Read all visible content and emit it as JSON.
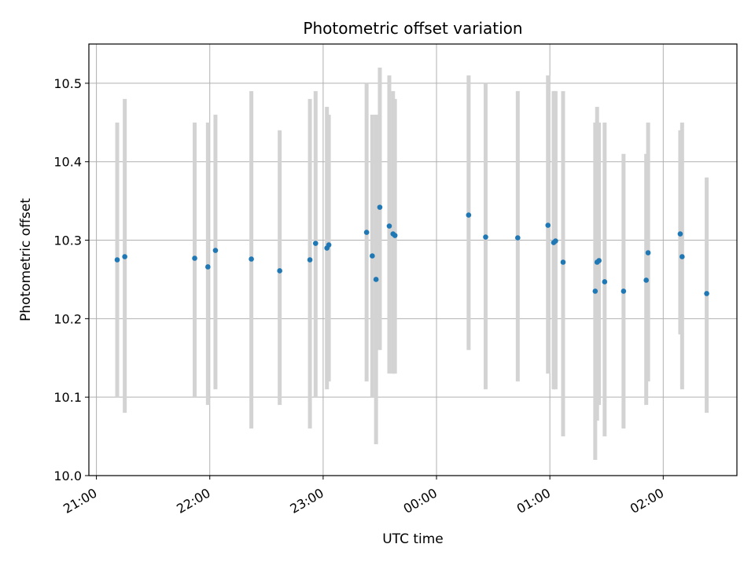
{
  "chart_data": {
    "type": "scatter",
    "title": "Photometric offset variation",
    "xlabel": "UTC time",
    "ylabel": "Photometric offset",
    "grid": true,
    "x_unit": "UTC time (next day beyond 24:00 shown as 00:00, 01:00, 02:00)",
    "xlim": [
      "20:56",
      "02:39"
    ],
    "ylim": [
      10.0,
      10.55
    ],
    "x_ticks": [
      "21:00",
      "22:00",
      "23:00",
      "00:00",
      "01:00",
      "02:00"
    ],
    "y_ticks": [
      "10.0",
      "10.1",
      "10.2",
      "10.3",
      "10.4",
      "10.5"
    ],
    "point_color": "#1f77b4",
    "errorbar_color": "#d3d3d3",
    "series": [
      {
        "x": [
          "21:11",
          "21:15",
          "21:52",
          "21:59",
          "22:03",
          "22:22",
          "22:37",
          "22:53",
          "22:56",
          "23:02",
          "23:03",
          "23:23",
          "23:26",
          "23:28",
          "23:30",
          "23:35",
          "23:37",
          "23:38",
          "24:17",
          "24:26",
          "24:43",
          "24:59",
          "25:02",
          "25:03",
          "25:07",
          "25:24",
          "25:25",
          "25:26",
          "25:29",
          "25:39",
          "25:51",
          "25:52",
          "26:09",
          "26:10",
          "26:23"
        ],
        "y": [
          10.275,
          10.279,
          10.277,
          10.266,
          10.287,
          10.276,
          10.261,
          10.275,
          10.296,
          10.29,
          10.294,
          10.31,
          10.28,
          10.25,
          10.342,
          10.318,
          10.308,
          10.306,
          10.332,
          10.304,
          10.303,
          10.319,
          10.297,
          10.299,
          10.272,
          10.235,
          10.272,
          10.274,
          10.247,
          10.235,
          10.249,
          10.284,
          10.308,
          10.279,
          10.232
        ],
        "y_lo": [
          10.1,
          10.08,
          10.1,
          10.09,
          10.11,
          10.06,
          10.09,
          10.06,
          10.1,
          10.11,
          10.12,
          10.12,
          10.1,
          10.04,
          10.16,
          10.13,
          10.13,
          10.13,
          10.16,
          10.11,
          10.12,
          10.13,
          10.11,
          10.11,
          10.05,
          10.02,
          10.07,
          10.09,
          10.05,
          10.06,
          10.09,
          10.12,
          10.18,
          10.11,
          10.08
        ],
        "y_hi": [
          10.45,
          10.48,
          10.45,
          10.45,
          10.46,
          10.49,
          10.44,
          10.48,
          10.49,
          10.47,
          10.46,
          10.5,
          10.46,
          10.46,
          10.52,
          10.51,
          10.49,
          10.48,
          10.51,
          10.5,
          10.49,
          10.51,
          10.49,
          10.49,
          10.49,
          10.45,
          10.47,
          10.45,
          10.45,
          10.41,
          10.41,
          10.45,
          10.44,
          10.45,
          10.38
        ]
      }
    ]
  }
}
